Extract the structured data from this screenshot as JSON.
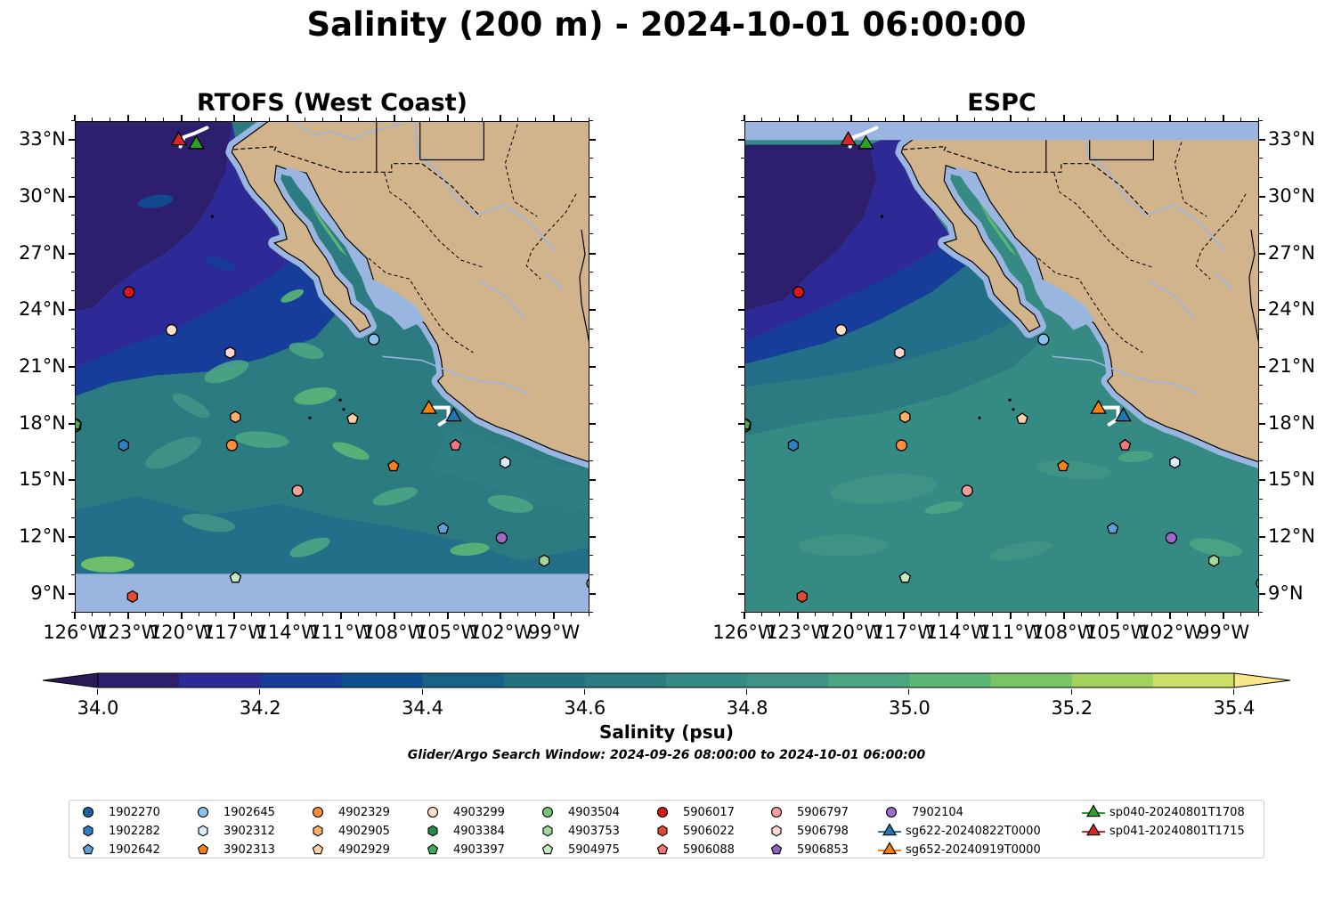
{
  "figure": {
    "title": "Salinity (200 m) - 2024-10-01 06:00:00",
    "left_panel_title": "RTOFS (West Coast)",
    "right_panel_title": "ESPC",
    "colorbar_label": "Salinity (psu)",
    "search_window": "Glider/Argo Search Window: 2024-09-26 08:00:00 to 2024-10-01 06:00:00"
  },
  "colors": {
    "land": "#d2b48c",
    "shelf": "#9ab6e0",
    "coastline": "#000000",
    "river": "#9ab6e0"
  },
  "chart_data": {
    "type": "map",
    "variable": "Salinity",
    "depth": "200 m",
    "valid_time": "2024-10-01 06:00:00",
    "lon_range": [
      -126,
      -97
    ],
    "lat_range": [
      8,
      34
    ],
    "lon_ticks": [
      -126,
      -123,
      -120,
      -117,
      -114,
      -111,
      -108,
      -105,
      -102,
      -99
    ],
    "lon_tick_labels": [
      "126°W",
      "123°W",
      "120°W",
      "117°W",
      "114°W",
      "111°W",
      "108°W",
      "105°W",
      "102°W",
      "99°W"
    ],
    "lat_ticks": [
      9,
      12,
      15,
      18,
      21,
      24,
      27,
      30,
      33
    ],
    "lat_tick_labels": [
      "9°N",
      "12°N",
      "15°N",
      "18°N",
      "21°N",
      "24°N",
      "27°N",
      "30°N",
      "33°N"
    ],
    "colorbar": {
      "min": 34.0,
      "max": 35.4,
      "step": 0.1,
      "ticks": [
        "34.0",
        "34.2",
        "34.4",
        "34.6",
        "34.8",
        "35.0",
        "35.2",
        "35.4"
      ],
      "colors": [
        "#2e1e6e",
        "#2d2a97",
        "#173d9a",
        "#0e4f8f",
        "#1a6186",
        "#23707e",
        "#2b7b80",
        "#368a84",
        "#3f9385",
        "#4aa583",
        "#5cb676",
        "#77c567",
        "#a0d25d",
        "#cbde67"
      ],
      "under_color": "#2a1957",
      "over_color": "#f8e88b"
    },
    "panels": [
      "RTOFS (West Coast)",
      "ESPC"
    ],
    "observations": [
      {
        "id": "1902270",
        "lon": -126.0,
        "lat": 18.0,
        "marker": "circle",
        "color": "#1f5fa8"
      },
      {
        "id": "1902282",
        "lon": -123.3,
        "lat": 16.9,
        "marker": "hexagon",
        "color": "#2f7fc1"
      },
      {
        "id": "1902642",
        "lon": -105.3,
        "lat": 12.5,
        "marker": "pentagon",
        "color": "#5ea0d8"
      },
      {
        "id": "1902645",
        "lon": -109.2,
        "lat": 22.5,
        "marker": "circle",
        "color": "#89c2ec"
      },
      {
        "id": "3902312",
        "lon": -101.8,
        "lat": 16.0,
        "marker": "hexagon",
        "color": "#d8ecf9"
      },
      {
        "id": "3902313",
        "lon": -108.1,
        "lat": 15.8,
        "marker": "pentagon",
        "color": "#f47f1f"
      },
      {
        "id": "4902329",
        "lon": -117.2,
        "lat": 16.9,
        "marker": "circle",
        "color": "#fd8d3c"
      },
      {
        "id": "4902905",
        "lon": -117.0,
        "lat": 18.4,
        "marker": "hexagon",
        "color": "#fdae6b"
      },
      {
        "id": "4902929",
        "lon": -110.4,
        "lat": 18.3,
        "marker": "pentagon",
        "color": "#fdd0a2"
      },
      {
        "id": "4903299",
        "lon": -120.6,
        "lat": 23.0,
        "marker": "circle",
        "color": "#fde0c5"
      },
      {
        "id": "4903384",
        "lon": -126.0,
        "lat": 17.9,
        "marker": "hexagon",
        "color": "#238b45"
      },
      {
        "id": "4903397",
        "lon": -126.0,
        "lat": 18.0,
        "marker": "pentagon",
        "color": "#41ab5d"
      },
      {
        "id": "4903504",
        "lon": -96.9,
        "lat": 9.6,
        "marker": "circle",
        "color": "#74c476"
      },
      {
        "id": "4903753",
        "lon": -99.6,
        "lat": 10.8,
        "marker": "hexagon",
        "color": "#a1d99b"
      },
      {
        "id": "5904975",
        "lon": -117.0,
        "lat": 9.9,
        "marker": "pentagon",
        "color": "#c7e9c0"
      },
      {
        "id": "5906017",
        "lon": -123.0,
        "lat": 25.0,
        "marker": "circle",
        "color": "#d7191c"
      },
      {
        "id": "5906022",
        "lon": -122.8,
        "lat": 8.9,
        "marker": "hexagon",
        "color": "#e34a33"
      },
      {
        "id": "5906088",
        "lon": -104.6,
        "lat": 16.9,
        "marker": "pentagon",
        "color": "#f4777f"
      },
      {
        "id": "5906797",
        "lon": -113.5,
        "lat": 14.5,
        "marker": "circle",
        "color": "#f4a09a"
      },
      {
        "id": "5906798",
        "lon": -117.3,
        "lat": 21.8,
        "marker": "hexagon",
        "color": "#fdd5d1"
      },
      {
        "id": "5906853",
        "lon": -117.0,
        "lat": 19.6,
        "marker": "pentagon",
        "color": "#8a64b8",
        "hidden": true
      },
      {
        "id": "7902104",
        "lon": -102.0,
        "lat": 12.0,
        "marker": "circle",
        "color": "#9e6ac8"
      },
      {
        "id": "sp622-20240822T0000",
        "legend": "sg622-20240822T0000",
        "lon": -104.7,
        "lat": 18.5,
        "marker": "triangle",
        "color": "#1f77b4"
      },
      {
        "id": "sp652-20240919T0000",
        "legend": "sg652-20240919T0000",
        "lon": -106.1,
        "lat": 18.9,
        "marker": "triangle",
        "color": "#ff7f0e"
      },
      {
        "id": "sp040-20240801T1708",
        "legend": "sp040-20240801T1708",
        "lon": -119.2,
        "lat": 32.9,
        "marker": "triangle",
        "color": "#2ca02c"
      },
      {
        "id": "sp041-20240801T1715",
        "legend": "sp041-20240801T1715",
        "lon": -120.2,
        "lat": 33.1,
        "marker": "triangle",
        "color": "#d62728"
      }
    ]
  },
  "legend": {
    "entries": [
      {
        "label": "1902270",
        "marker": "circle",
        "color": "#1f5fa8"
      },
      {
        "label": "1902282",
        "marker": "hexagon",
        "color": "#2f7fc1"
      },
      {
        "label": "1902642",
        "marker": "pentagon",
        "color": "#5ea0d8"
      },
      {
        "label": "1902645",
        "marker": "circle",
        "color": "#89c2ec"
      },
      {
        "label": "3902312",
        "marker": "hexagon",
        "color": "#d8ecf9"
      },
      {
        "label": "3902313",
        "marker": "pentagon",
        "color": "#f47f1f"
      },
      {
        "label": "4902329",
        "marker": "circle",
        "color": "#fd8d3c"
      },
      {
        "label": "4902905",
        "marker": "hexagon",
        "color": "#fdae6b"
      },
      {
        "label": "4902929",
        "marker": "pentagon",
        "color": "#fdd0a2"
      },
      {
        "label": "4903299",
        "marker": "circle",
        "color": "#fde0c5"
      },
      {
        "label": "4903384",
        "marker": "hexagon",
        "color": "#238b45"
      },
      {
        "label": "4903397",
        "marker": "pentagon",
        "color": "#41ab5d"
      },
      {
        "label": "4903504",
        "marker": "circle",
        "color": "#74c476"
      },
      {
        "label": "4903753",
        "marker": "hexagon",
        "color": "#a1d99b"
      },
      {
        "label": "5904975",
        "marker": "pentagon",
        "color": "#c7e9c0"
      },
      {
        "label": "5906017",
        "marker": "circle",
        "color": "#d7191c"
      },
      {
        "label": "5906022",
        "marker": "hexagon",
        "color": "#e34a33"
      },
      {
        "label": "5906088",
        "marker": "pentagon",
        "color": "#f4777f"
      },
      {
        "label": "5906797",
        "marker": "circle",
        "color": "#f4a09a"
      },
      {
        "label": "5906798",
        "marker": "hexagon",
        "color": "#fdd5d1"
      },
      {
        "label": "5906853",
        "marker": "pentagon",
        "color": "#8a64b8"
      },
      {
        "label": "7902104",
        "marker": "circle",
        "color": "#9e6ac8"
      },
      {
        "label": "sg622-20240822T0000",
        "marker": "triangle-line",
        "color": "#1f77b4"
      },
      {
        "label": "sg652-20240919T0000",
        "marker": "triangle-line",
        "color": "#ff7f0e"
      },
      {
        "label": "sp040-20240801T1708",
        "marker": "triangle-line",
        "color": "#2ca02c"
      },
      {
        "label": "sp041-20240801T1715",
        "marker": "triangle-line",
        "color": "#d62728"
      }
    ]
  }
}
